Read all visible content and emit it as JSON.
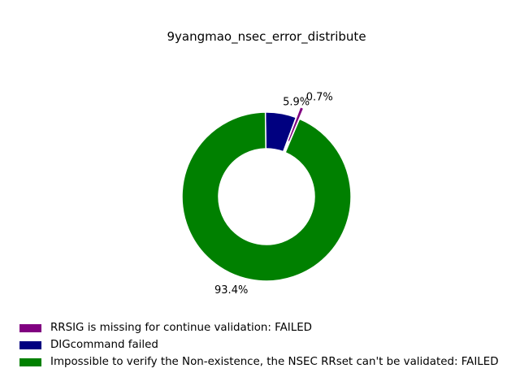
{
  "chart_data": {
    "type": "pie",
    "style": "donut",
    "title": "9yangmao_nsec_error_distribute",
    "slices": [
      {
        "label": "RRSIG is missing for continue validation: FAILED",
        "value": 0.7,
        "percent_label": "0.7%",
        "color": "#800080",
        "exploded": true
      },
      {
        "label": "DIGcommand failed",
        "value": 5.9,
        "percent_label": "5.9%",
        "color": "#000080",
        "exploded": false
      },
      {
        "label": "Impossible to verify the Non-existence, the NSEC RRset can't be validated: FAILED",
        "value": 93.4,
        "percent_label": "93.4%",
        "color": "#008000",
        "exploded": false
      }
    ],
    "legend_position": "bottom-left"
  }
}
